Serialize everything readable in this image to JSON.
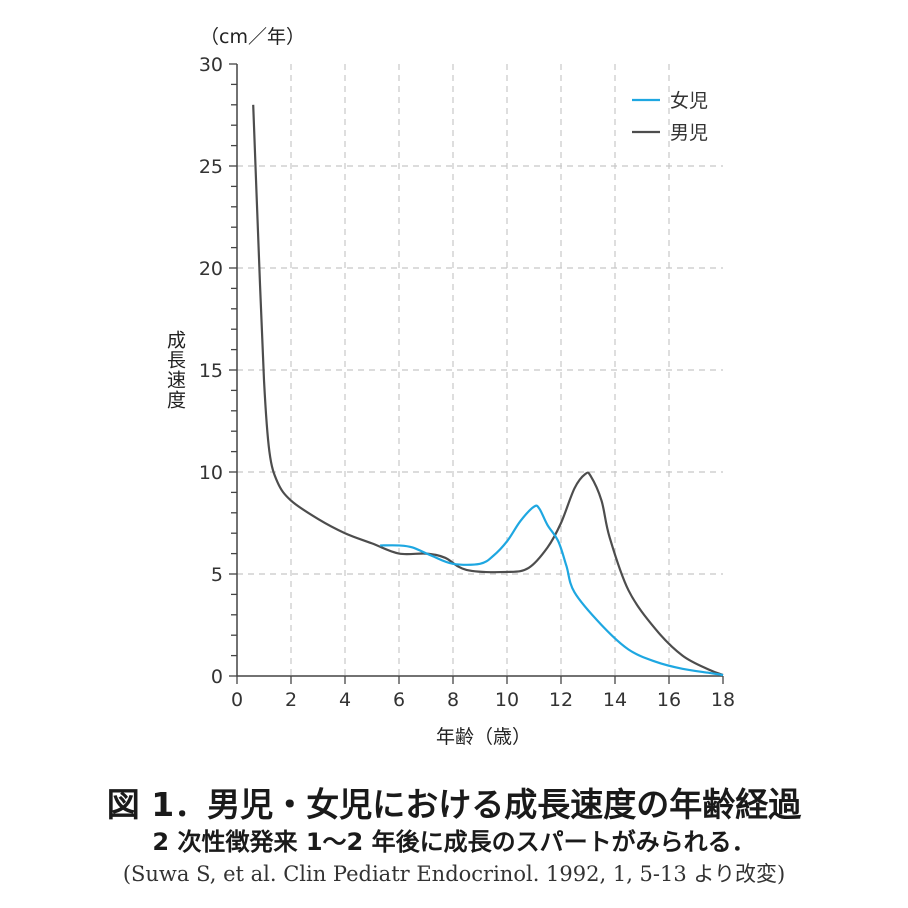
{
  "chart_data": {
    "type": "line",
    "unit_label": "（cm／年）",
    "ylabel": "成長速度",
    "xlabel": "年齢（歳）",
    "xlim": [
      0,
      18
    ],
    "ylim": [
      0,
      30
    ],
    "xticks": [
      "0",
      "2",
      "4",
      "6",
      "8",
      "10",
      "12",
      "14",
      "16",
      "18"
    ],
    "yticks": [
      "0",
      "5",
      "10",
      "15",
      "20",
      "25",
      "30"
    ],
    "grid": true,
    "legend_position": "top-right",
    "series": [
      {
        "name": "女児",
        "color": "#1ea7e1",
        "x": [
          5.3,
          6,
          6.5,
          7.2,
          8,
          9,
          9.5,
          10,
          10.5,
          11,
          11.2,
          11.5,
          11.9,
          12.2,
          12.5,
          13.5,
          14.5,
          15.5,
          16.5,
          17.5,
          18
        ],
        "y": [
          6.4,
          6.4,
          6.3,
          5.9,
          5.5,
          5.5,
          5.9,
          6.6,
          7.6,
          8.3,
          8.2,
          7.4,
          6.6,
          5.4,
          4.1,
          2.5,
          1.3,
          0.7,
          0.35,
          0.15,
          0.05
        ]
      },
      {
        "name": "男児",
        "color": "#4d4d4d",
        "x": [
          0.6,
          0.8,
          1,
          1.2,
          1.5,
          2,
          3,
          4,
          5,
          6,
          7,
          7.7,
          8.5,
          10,
          10.8,
          11.5,
          12,
          12.5,
          12.9,
          13.1,
          13.5,
          13.8,
          14.5,
          15.5,
          16.5,
          17.5,
          18
        ],
        "y": [
          28,
          21,
          14.5,
          11,
          9.5,
          8.6,
          7.7,
          7.0,
          6.5,
          6.0,
          6.0,
          5.8,
          5.2,
          5.1,
          5.3,
          6.3,
          7.5,
          9.2,
          9.9,
          9.8,
          8.6,
          6.8,
          4.2,
          2.3,
          1.0,
          0.3,
          0.05
        ]
      }
    ]
  },
  "caption": {
    "title": "図 1．男児・女児における成長速度の年齢経過",
    "subtitle": "2 次性徴発来 1～2 年後に成長のスパートがみられる．",
    "citation": "(Suwa S, et al. Clin Pediatr Endocrinol. 1992, 1, 5-13 より改変)"
  }
}
